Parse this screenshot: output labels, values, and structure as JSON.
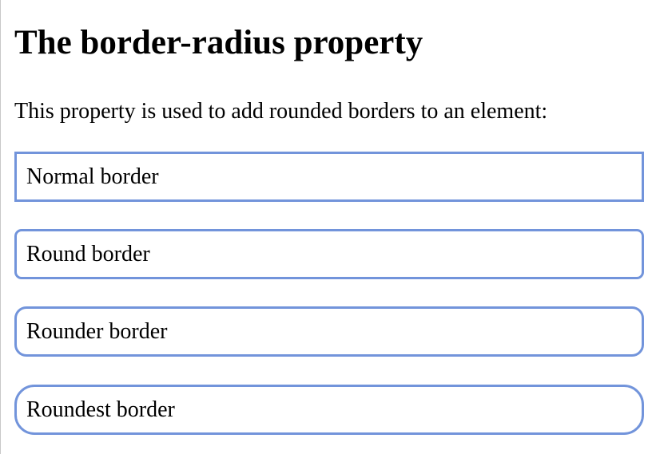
{
  "heading": "The border-radius property",
  "intro": "This property is used to add rounded borders to an element:",
  "examples": [
    {
      "label": "Normal border"
    },
    {
      "label": "Round border"
    },
    {
      "label": "Rounder border"
    },
    {
      "label": "Roundest border"
    }
  ],
  "colors": {
    "border": "#7294db",
    "text": "#000000",
    "background": "#ffffff"
  }
}
